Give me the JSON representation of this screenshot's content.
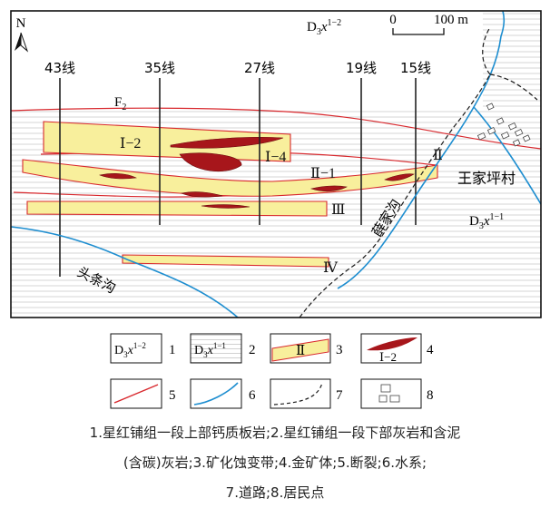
{
  "map": {
    "north_label": "N",
    "scale": {
      "zero": "0",
      "end": "100 m"
    },
    "unit_labels": {
      "upper": {
        "base": "D",
        "sub": "3",
        "it": "x",
        "sup": "1−2"
      },
      "lower": {
        "base": "D",
        "sub": "3",
        "it": "x",
        "sup": "1−1"
      }
    },
    "exploration_lines": [
      "43线",
      "35线",
      "27线",
      "19线",
      "15线"
    ],
    "fault": {
      "base": "F",
      "sub": "2"
    },
    "alteration_zones": [
      "Ⅰ−2",
      "Ⅰ−4",
      "Ⅱ−1",
      "Ⅱ",
      "Ⅲ",
      "Ⅳ"
    ],
    "place_labels": {
      "village": "王家坪村",
      "creek_west": "头条沟",
      "creek_east": "薛家沟"
    },
    "colors": {
      "zone_fill": "#f8ef9c",
      "ore_fill": "#a7161b",
      "fault": "#d8282d",
      "water": "#1e8ed0",
      "hatch": "#c9c9c9"
    }
  },
  "legend": {
    "items": [
      {
        "num": "1",
        "label": {
          "base": "D",
          "sub": "3",
          "it": "x",
          "sup": "1−2"
        }
      },
      {
        "num": "2",
        "label": {
          "base": "D",
          "sub": "3",
          "it": "x",
          "sup": "1−1"
        }
      },
      {
        "num": "3",
        "label": "Ⅱ"
      },
      {
        "num": "4",
        "label": "Ⅰ−2"
      },
      {
        "num": "5"
      },
      {
        "num": "6"
      },
      {
        "num": "7"
      },
      {
        "num": "8"
      }
    ]
  },
  "caption": {
    "line1": "1.星红铺组一段上部钙质板岩;2.星红铺组一段下部灰岩和含泥",
    "line2": "(含碳)灰岩;3.矿化蚀变带;4.金矿体;5.断裂;6.水系;",
    "line3": "7.道路;8.居民点"
  }
}
